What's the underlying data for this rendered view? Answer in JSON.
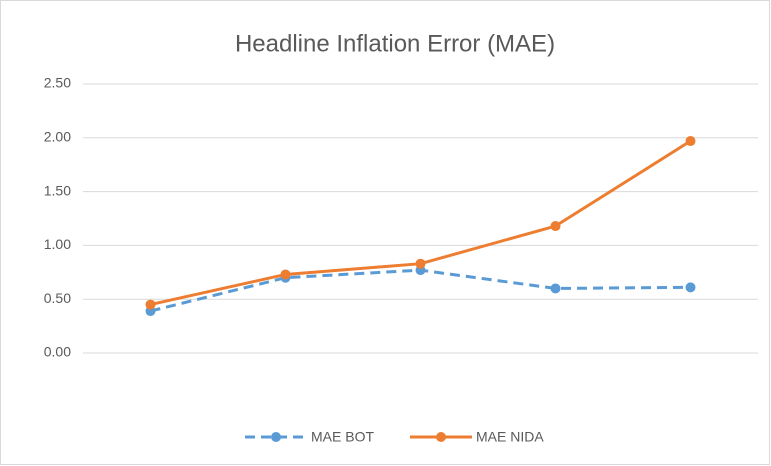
{
  "chart_data": {
    "type": "line",
    "title": "Headline Inflation Error (MAE)",
    "categories": [
      null,
      null,
      null,
      null,
      null
    ],
    "series": [
      {
        "name": "MAE BOT",
        "color": "#5b9bd5",
        "dashed": true,
        "values": [
          0.39,
          0.7,
          0.77,
          0.6,
          0.61
        ]
      },
      {
        "name": "MAE NIDA",
        "color": "#ed7d31",
        "dashed": false,
        "values": [
          0.45,
          0.73,
          0.83,
          1.18,
          1.97
        ]
      }
    ],
    "ylim": [
      0,
      2.5
    ],
    "yticks": [
      {
        "value": 0,
        "label": "0.00"
      },
      {
        "value": 0.5,
        "label": "0.50"
      },
      {
        "value": 1,
        "label": "1.00"
      },
      {
        "value": 1.5,
        "label": "1.50"
      },
      {
        "value": 2,
        "label": "2.00"
      },
      {
        "value": 2.5,
        "label": "2.50"
      }
    ],
    "grid": true,
    "legend": "bottom"
  }
}
